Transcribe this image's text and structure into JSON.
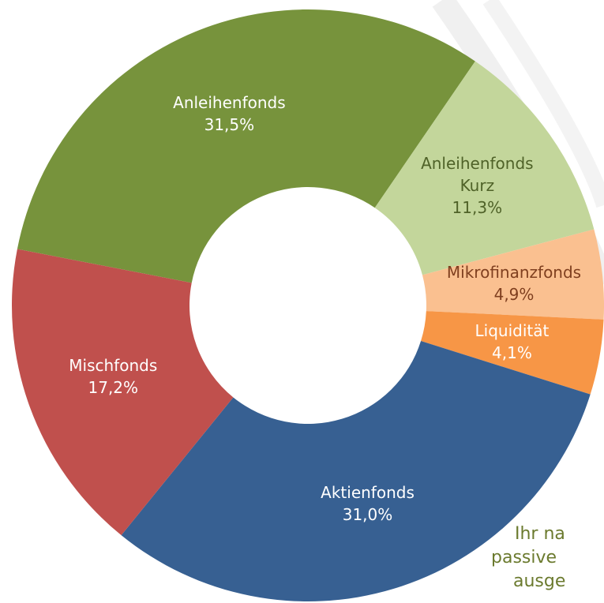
{
  "chart_data": {
    "type": "donut",
    "categories": [
      "Anleihenfonds",
      "Anleihenfonds Kurz",
      "Mikrofinanzfonds",
      "Liquidität",
      "Aktienfonds",
      "Mischfonds"
    ],
    "values": [
      31.5,
      11.3,
      4.9,
      4.1,
      31.0,
      17.2
    ],
    "value_labels": [
      "31,5%",
      "11,3%",
      "4,9%",
      "4,1%",
      "31,0%",
      "17,2%"
    ],
    "colors": [
      "#77933c",
      "#c3d69b",
      "#fac090",
      "#f79646",
      "#376092",
      "#c0504d"
    ],
    "label_colors": [
      "#ffffff",
      "#4f6228",
      "#7f3f1f",
      "#ffffff",
      "#ffffff",
      "#ffffff"
    ]
  },
  "annotation_lines": [
    "Ihr na",
    "passive",
    "ausge"
  ]
}
